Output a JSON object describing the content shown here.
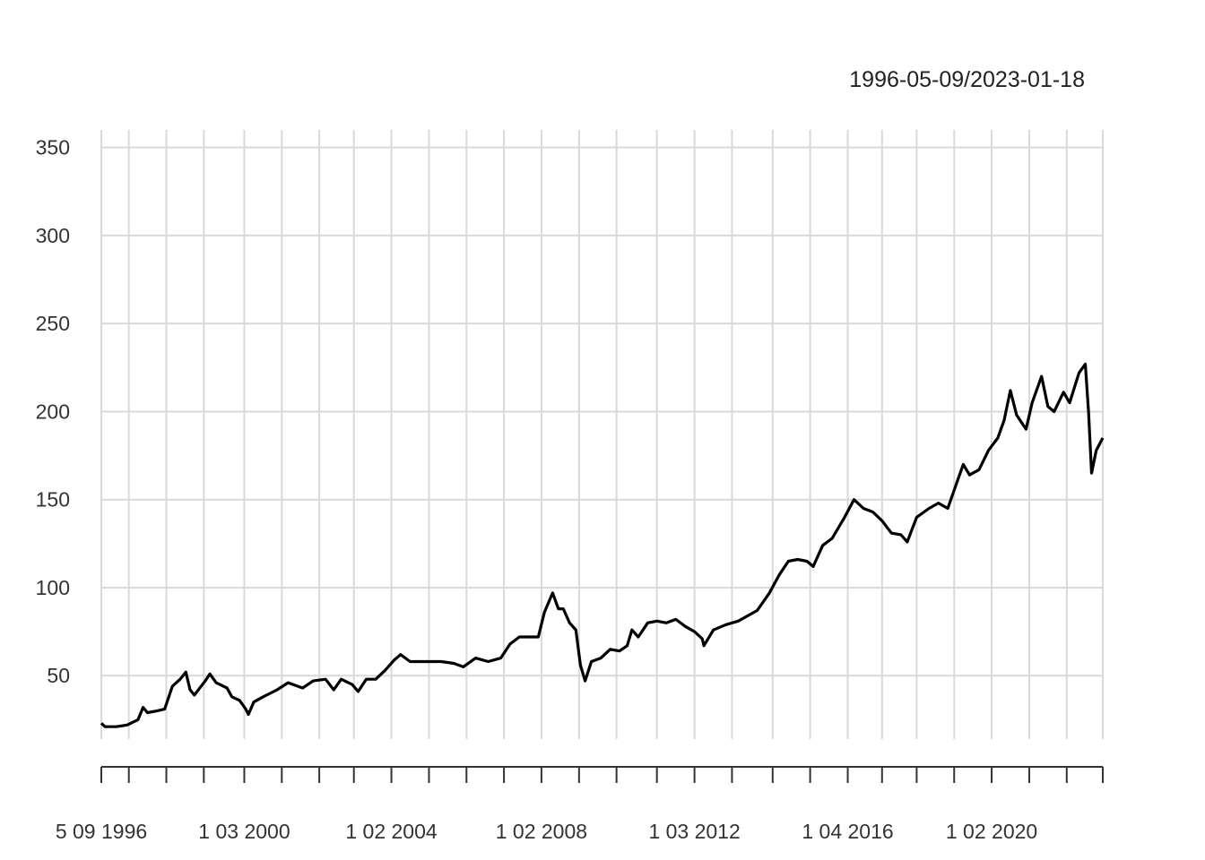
{
  "chart_data": {
    "type": "line",
    "title": "",
    "date_range_label": "1996-05-09/2023-01-18",
    "xlabel": "",
    "ylabel": "",
    "x_range": [
      "1996-05-09",
      "2023-01-18"
    ],
    "ylim": [
      14,
      360
    ],
    "y_ticks": [
      50,
      100,
      150,
      200,
      250,
      300,
      350
    ],
    "y_tick_labels": [
      "50",
      "100",
      "150",
      "200",
      "250",
      "300",
      "350"
    ],
    "x_tick_labels": [
      {
        "date": "1996-05-09",
        "label": "5 09 1996"
      },
      {
        "date": "2000-03-01",
        "label": "1 03 2000"
      },
      {
        "date": "2004-02-01",
        "label": "1 02 2004"
      },
      {
        "date": "2008-02-01",
        "label": "1 02 2008"
      },
      {
        "date": "2012-03-01",
        "label": "1 03 2012"
      },
      {
        "date": "2016-04-01",
        "label": "1 04 2016"
      },
      {
        "date": "2020-02-01",
        "label": "1 02 2020"
      }
    ],
    "x_gridlines": [
      "1996-05-09",
      "1997-02-01",
      "1998-02-01",
      "1999-02-01",
      "2000-03-01",
      "2001-03-01",
      "2002-03-01",
      "2003-02-01",
      "2004-02-01",
      "2005-02-01",
      "2006-02-01",
      "2007-02-01",
      "2008-02-01",
      "2009-02-01",
      "2010-02-01",
      "2011-03-01",
      "2012-03-01",
      "2013-03-01",
      "2014-04-01",
      "2015-04-01",
      "2016-04-01",
      "2017-03-01",
      "2018-02-01",
      "2019-02-01",
      "2020-02-01",
      "2021-02-01",
      "2022-02-01",
      "2023-01-18"
    ],
    "grid": true,
    "legend": "none",
    "line_color": "#000000",
    "grid_color": "#d9d9d9",
    "series": [
      {
        "points": [
          [
            "1996-05-09",
            23
          ],
          [
            "1996-06-15",
            21
          ],
          [
            "1996-10-01",
            21
          ],
          [
            "1997-01-15",
            22
          ],
          [
            "1997-05-01",
            25
          ],
          [
            "1997-06-20",
            32
          ],
          [
            "1997-08-01",
            29
          ],
          [
            "1997-11-01",
            30
          ],
          [
            "1998-01-15",
            31
          ],
          [
            "1998-04-01",
            44
          ],
          [
            "1998-06-15",
            48
          ],
          [
            "1998-08-10",
            52
          ],
          [
            "1998-09-20",
            42
          ],
          [
            "1998-11-01",
            39
          ],
          [
            "1999-02-15",
            47
          ],
          [
            "1999-04-01",
            51
          ],
          [
            "1999-06-01",
            46
          ],
          [
            "1999-09-15",
            43
          ],
          [
            "1999-11-01",
            38
          ],
          [
            "2000-01-15",
            36
          ],
          [
            "2000-03-15",
            31
          ],
          [
            "2000-04-10",
            28
          ],
          [
            "2000-06-01",
            35
          ],
          [
            "2000-09-01",
            38
          ],
          [
            "2001-01-15",
            42
          ],
          [
            "2001-05-01",
            46
          ],
          [
            "2001-09-20",
            43
          ],
          [
            "2002-01-01",
            47
          ],
          [
            "2002-05-01",
            48
          ],
          [
            "2002-07-20",
            42
          ],
          [
            "2002-10-01",
            48
          ],
          [
            "2003-01-15",
            45
          ],
          [
            "2003-03-15",
            41
          ],
          [
            "2003-06-01",
            48
          ],
          [
            "2003-09-01",
            48
          ],
          [
            "2003-12-01",
            53
          ],
          [
            "2004-03-01",
            59
          ],
          [
            "2004-05-01",
            62
          ],
          [
            "2004-08-01",
            58
          ],
          [
            "2005-01-01",
            58
          ],
          [
            "2005-06-01",
            58
          ],
          [
            "2005-10-01",
            57
          ],
          [
            "2006-01-01",
            55
          ],
          [
            "2006-05-01",
            60
          ],
          [
            "2006-09-01",
            58
          ],
          [
            "2007-01-01",
            60
          ],
          [
            "2007-04-01",
            68
          ],
          [
            "2007-07-01",
            72
          ],
          [
            "2007-11-01",
            72
          ],
          [
            "2008-01-01",
            72
          ],
          [
            "2008-03-01",
            86
          ],
          [
            "2008-05-20",
            97
          ],
          [
            "2008-07-15",
            88
          ],
          [
            "2008-09-01",
            88
          ],
          [
            "2008-11-01",
            80
          ],
          [
            "2009-01-01",
            76
          ],
          [
            "2009-02-15",
            56
          ],
          [
            "2009-04-01",
            47
          ],
          [
            "2009-06-01",
            58
          ],
          [
            "2009-09-01",
            60
          ],
          [
            "2009-12-01",
            65
          ],
          [
            "2010-03-01",
            64
          ],
          [
            "2010-05-15",
            67
          ],
          [
            "2010-07-01",
            76
          ],
          [
            "2010-09-01",
            72
          ],
          [
            "2010-12-01",
            80
          ],
          [
            "2011-03-01",
            81
          ],
          [
            "2011-06-01",
            80
          ],
          [
            "2011-09-01",
            82
          ],
          [
            "2011-12-01",
            78
          ],
          [
            "2012-03-01",
            75
          ],
          [
            "2012-05-15",
            71
          ],
          [
            "2012-06-01",
            67
          ],
          [
            "2012-09-01",
            76
          ],
          [
            "2013-01-01",
            79
          ],
          [
            "2013-05-01",
            81
          ],
          [
            "2013-08-01",
            84
          ],
          [
            "2013-11-01",
            87
          ],
          [
            "2014-03-01",
            97
          ],
          [
            "2014-06-01",
            107
          ],
          [
            "2014-09-01",
            115
          ],
          [
            "2014-12-01",
            116
          ],
          [
            "2015-03-01",
            115
          ],
          [
            "2015-05-01",
            112
          ],
          [
            "2015-08-01",
            124
          ],
          [
            "2015-11-01",
            128
          ],
          [
            "2016-03-01",
            140
          ],
          [
            "2016-06-01",
            150
          ],
          [
            "2016-09-01",
            145
          ],
          [
            "2016-12-01",
            143
          ],
          [
            "2017-03-01",
            138
          ],
          [
            "2017-06-01",
            131
          ],
          [
            "2017-09-01",
            130
          ],
          [
            "2017-11-01",
            126
          ],
          [
            "2018-02-01",
            140
          ],
          [
            "2018-06-01",
            145
          ],
          [
            "2018-09-01",
            148
          ],
          [
            "2018-12-01",
            145
          ],
          [
            "2019-03-01",
            160
          ],
          [
            "2019-05-01",
            170
          ],
          [
            "2019-07-01",
            164
          ],
          [
            "2019-10-01",
            167
          ],
          [
            "2020-01-01",
            178
          ],
          [
            "2020-04-01",
            185
          ],
          [
            "2020-06-01",
            195
          ],
          [
            "2020-08-01",
            212
          ],
          [
            "2020-10-01",
            198
          ],
          [
            "2021-01-01",
            190
          ],
          [
            "2021-03-01",
            205
          ],
          [
            "2021-06-01",
            220
          ],
          [
            "2021-08-01",
            203
          ],
          [
            "2021-10-01",
            200
          ],
          [
            "2022-01-01",
            211
          ],
          [
            "2022-03-01",
            205
          ],
          [
            "2022-06-01",
            222
          ],
          [
            "2022-08-01",
            227
          ],
          [
            "2022-09-01",
            200
          ],
          [
            "2022-10-01",
            165
          ],
          [
            "2022-11-15",
            178
          ],
          [
            "2023-01-18",
            185
          ]
        ]
      }
    ]
  }
}
